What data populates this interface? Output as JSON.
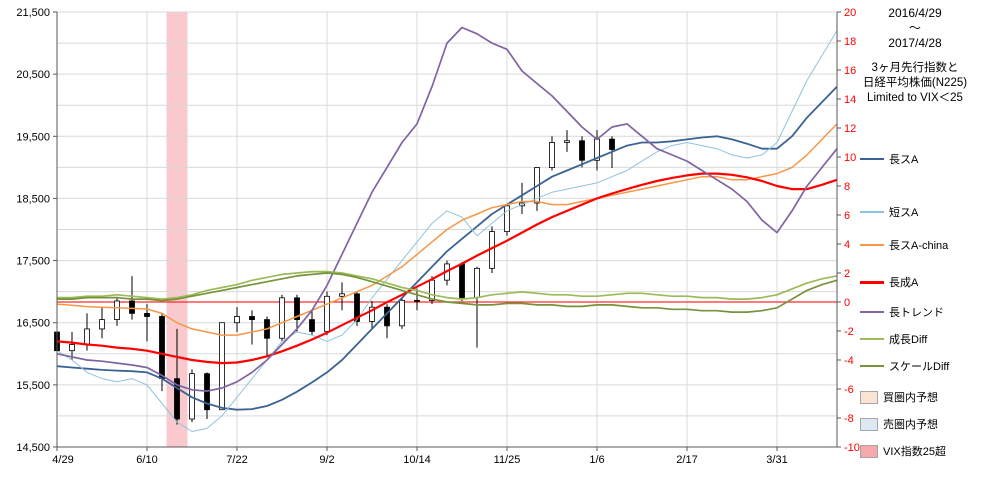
{
  "panel": {
    "period_start": "2016/4/29",
    "tilde": "～",
    "period_end": "2017/4/28",
    "subtitle1": "3ヶ月先行指数と",
    "subtitle2": "日経平均株価(N225)",
    "subtitle3": "Limited to  VIX＜25"
  },
  "legend": {
    "items": [
      {
        "label": "長スA",
        "type": "line",
        "color": "#3A6394",
        "lw": 2
      },
      {
        "label": "短スA",
        "type": "line",
        "color": "#8FC3DC",
        "lw": 1
      },
      {
        "label": "長スA-china",
        "type": "line",
        "color": "#F79646",
        "lw": 2
      },
      {
        "label": "長成A",
        "type": "line",
        "color": "#FF0000",
        "lw": 3
      },
      {
        "label": "長トレンド",
        "type": "line",
        "color": "#8064A2",
        "lw": 2
      },
      {
        "label": "成長Diff",
        "type": "line",
        "color": "#9BBB59",
        "lw": 2
      },
      {
        "label": "スケールDiff",
        "type": "line",
        "color": "#77933C",
        "lw": 2
      },
      {
        "label": "買圏内予想",
        "type": "area",
        "fill": "#FBE3D4"
      },
      {
        "label": "売圏内予想",
        "type": "area",
        "fill": "#DCE9F5"
      },
      {
        "label": "VIX指数25超",
        "type": "area",
        "fill": "#F5A9AD"
      }
    ]
  },
  "chart_data": {
    "type": "candlestick+line",
    "title": "3ヶ月先行指数と日経平均株価(N225) Limited to VIX<25",
    "n_points": 53,
    "x_labels": [
      "4/29",
      "6/10",
      "7/22",
      "9/2",
      "10/14",
      "11/25",
      "1/6",
      "2/17",
      "3/31"
    ],
    "x_label_indices": [
      0,
      6,
      12,
      18,
      24,
      30,
      36,
      42,
      48
    ],
    "left_axis": {
      "min": 14500,
      "max": 21500,
      "step": 1000,
      "minor_step": 500,
      "labels": [
        "21,500",
        "20,500",
        "19,500",
        "18,500",
        "17,500",
        "16,500",
        "15,500",
        "14,500"
      ],
      "color": "#000000"
    },
    "right_axis": {
      "min": -10,
      "max": 20,
      "step": 2,
      "labels": [
        "20",
        "18",
        "16",
        "14",
        "12",
        "10",
        "8",
        "6",
        "4",
        "2",
        "0",
        "-2",
        "-4",
        "-6",
        "-8",
        "-10"
      ],
      "color": "#FF0000"
    },
    "zero_line": {
      "axis": "right",
      "value": 0,
      "color": "#FF2A2A"
    },
    "vix_band": {
      "start_index": 7.3,
      "end_index": 8.7,
      "fill": "#F9C9CD",
      "label": "VIX指数25超"
    },
    "grid_color": "#D9D9D9",
    "axis_color": "#595959",
    "candles": {
      "name": "N225",
      "up_fill": "#FFFFFF",
      "down_fill": "#000000",
      "stroke": "#000000",
      "ohlc": [
        [
          16350,
          16450,
          15750,
          16050
        ],
        [
          16050,
          16350,
          15900,
          16150
        ],
        [
          16150,
          16650,
          16050,
          16400
        ],
        [
          16400,
          16750,
          16250,
          16550
        ],
        [
          16550,
          16900,
          16450,
          16850
        ],
        [
          16850,
          17250,
          16550,
          16650
        ],
        [
          16650,
          16800,
          16200,
          16600
        ],
        [
          16600,
          16650,
          15400,
          15600
        ],
        [
          15600,
          16400,
          14860,
          14950
        ],
        [
          14950,
          15750,
          14900,
          15680
        ],
        [
          15680,
          15700,
          14950,
          15100
        ],
        [
          15100,
          16500,
          15100,
          16500
        ],
        [
          16500,
          16750,
          16350,
          16600
        ],
        [
          16600,
          16700,
          16150,
          16550
        ],
        [
          16550,
          16600,
          15950,
          16250
        ],
        [
          16250,
          16950,
          16200,
          16900
        ],
        [
          16900,
          16950,
          16350,
          16550
        ],
        [
          16550,
          16700,
          16300,
          16360
        ],
        [
          16360,
          17000,
          16300,
          16925
        ],
        [
          16925,
          17150,
          16700,
          16965
        ],
        [
          16965,
          17000,
          16450,
          16520
        ],
        [
          16520,
          16850,
          16400,
          16750
        ],
        [
          16750,
          16800,
          16250,
          16450
        ],
        [
          16450,
          16900,
          16400,
          16860
        ],
        [
          16860,
          17050,
          16700,
          16856
        ],
        [
          16856,
          17250,
          16800,
          17185
        ],
        [
          17185,
          17500,
          17100,
          17446
        ],
        [
          17446,
          17480,
          16850,
          16905
        ],
        [
          16905,
          17400,
          16100,
          17375
        ],
        [
          17375,
          18050,
          17300,
          17967
        ],
        [
          17967,
          18400,
          17900,
          18381
        ],
        [
          18381,
          18750,
          18250,
          18426
        ],
        [
          18426,
          19000,
          18300,
          18996
        ],
        [
          18996,
          19500,
          18950,
          19401
        ],
        [
          19401,
          19600,
          19250,
          19428
        ],
        [
          19428,
          19500,
          19000,
          19114
        ],
        [
          19114,
          19600,
          18950,
          19454
        ],
        [
          19454,
          19500,
          18990,
          19287
        ]
      ]
    },
    "series": [
      {
        "name": "長スA",
        "axis": "left",
        "color": "#3A6394",
        "width": 1.8,
        "values": [
          15800,
          15780,
          15760,
          15740,
          15730,
          15720,
          15700,
          15600,
          15450,
          15300,
          15200,
          15130,
          15100,
          15110,
          15160,
          15260,
          15390,
          15540,
          15700,
          15900,
          16150,
          16400,
          16650,
          16900,
          17150,
          17400,
          17650,
          17850,
          18050,
          18250,
          18400,
          18550,
          18700,
          18850,
          18950,
          19050,
          19150,
          19250,
          19350,
          19400,
          19400,
          19420,
          19450,
          19480,
          19500,
          19450,
          19380,
          19300,
          19300,
          19500,
          19800,
          20050,
          20300
        ]
      },
      {
        "name": "短スA",
        "axis": "left",
        "color": "#8FC3DC",
        "width": 1,
        "values": [
          16050,
          15900,
          15700,
          15600,
          15550,
          15600,
          15500,
          15200,
          14900,
          14750,
          14800,
          15000,
          15300,
          15600,
          15900,
          16200,
          16350,
          16300,
          16200,
          16300,
          16550,
          16900,
          17200,
          17500,
          17800,
          18100,
          18300,
          18200,
          17900,
          18100,
          18300,
          18400,
          18500,
          18600,
          18650,
          18700,
          18750,
          18850,
          18950,
          19100,
          19250,
          19350,
          19400,
          19350,
          19300,
          19200,
          19150,
          19200,
          19400,
          19900,
          20400,
          20800,
          21200
        ]
      },
      {
        "name": "長スA-china",
        "axis": "left",
        "color": "#F79646",
        "width": 1.5,
        "values": [
          16800,
          16780,
          16760,
          16750,
          16740,
          16730,
          16720,
          16650,
          16500,
          16400,
          16350,
          16300,
          16300,
          16350,
          16400,
          16500,
          16600,
          16700,
          16800,
          16900,
          17000,
          17100,
          17250,
          17400,
          17600,
          17800,
          18000,
          18150,
          18250,
          18350,
          18400,
          18450,
          18450,
          18400,
          18400,
          18450,
          18500,
          18550,
          18600,
          18650,
          18700,
          18750,
          18800,
          18850,
          18850,
          18800,
          18800,
          18850,
          18900,
          19000,
          19200,
          19450,
          19700
        ]
      },
      {
        "name": "長成A",
        "axis": "left",
        "color": "#FF0000",
        "width": 2.2,
        "values": [
          16200,
          16180,
          16150,
          16130,
          16100,
          16080,
          16050,
          16000,
          15950,
          15900,
          15870,
          15850,
          15860,
          15900,
          15960,
          16040,
          16130,
          16230,
          16340,
          16460,
          16580,
          16700,
          16830,
          16950,
          17080,
          17200,
          17330,
          17450,
          17580,
          17700,
          17820,
          17950,
          18080,
          18200,
          18300,
          18400,
          18500,
          18580,
          18650,
          18720,
          18780,
          18830,
          18870,
          18900,
          18900,
          18880,
          18840,
          18780,
          18700,
          18650,
          18650,
          18720,
          18800
        ]
      },
      {
        "name": "長トレンド",
        "axis": "left",
        "color": "#8064A2",
        "width": 1.7,
        "values": [
          16000,
          15950,
          15900,
          15880,
          15850,
          15820,
          15780,
          15650,
          15500,
          15420,
          15400,
          15450,
          15550,
          15700,
          15900,
          16150,
          16400,
          16700,
          17100,
          17600,
          18100,
          18600,
          19000,
          19400,
          19700,
          20300,
          21000,
          21250,
          21150,
          21000,
          20900,
          20550,
          20350,
          20150,
          19900,
          19650,
          19450,
          19650,
          19700,
          19500,
          19300,
          19200,
          19100,
          18950,
          18800,
          18650,
          18450,
          18150,
          17950,
          18300,
          18700,
          19000,
          19300
        ]
      },
      {
        "name": "成長Diff",
        "axis": "right",
        "color": "#9BBB59",
        "width": 1.7,
        "values": [
          0.3,
          0.3,
          0.4,
          0.4,
          0.5,
          0.4,
          0.3,
          0.2,
          0.3,
          0.5,
          0.8,
          1.0,
          1.2,
          1.5,
          1.7,
          1.9,
          2.0,
          2.1,
          2.1,
          2.0,
          1.8,
          1.6,
          1.3,
          1.0,
          0.8,
          0.5,
          0.3,
          0.2,
          0.3,
          0.5,
          0.6,
          0.7,
          0.6,
          0.5,
          0.5,
          0.4,
          0.4,
          0.5,
          0.6,
          0.6,
          0.5,
          0.4,
          0.4,
          0.3,
          0.3,
          0.2,
          0.2,
          0.3,
          0.5,
          0.9,
          1.3,
          1.6,
          1.8
        ]
      },
      {
        "name": "スケールDiff",
        "axis": "right",
        "color": "#77933C",
        "width": 1.7,
        "values": [
          0.2,
          0.2,
          0.3,
          0.3,
          0.3,
          0.2,
          0.2,
          0.1,
          0.2,
          0.4,
          0.6,
          0.8,
          1.0,
          1.2,
          1.4,
          1.6,
          1.8,
          1.9,
          2.0,
          1.9,
          1.7,
          1.4,
          1.1,
          0.8,
          0.5,
          0.2,
          0.0,
          -0.1,
          -0.2,
          -0.2,
          -0.1,
          -0.1,
          -0.2,
          -0.2,
          -0.3,
          -0.3,
          -0.2,
          -0.2,
          -0.3,
          -0.4,
          -0.4,
          -0.5,
          -0.5,
          -0.6,
          -0.6,
          -0.7,
          -0.7,
          -0.6,
          -0.4,
          0.2,
          0.8,
          1.2,
          1.5
        ]
      }
    ]
  }
}
